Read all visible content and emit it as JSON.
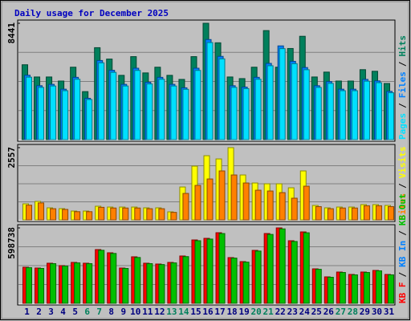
{
  "chart_data": [
    {
      "type": "bar",
      "title": "Daily usage for December 2025",
      "ylim": [
        0,
        8441
      ],
      "yticks": [
        8441
      ],
      "legend_separator": "/",
      "series": [
        {
          "name": "Hits",
          "color": "#00805c",
          "values": [
            5431,
            4545,
            4545,
            4250,
            5254,
            3483,
            6670,
            5844,
            4663,
            6021,
            4840,
            5254,
            4663,
            4368,
            6021,
            8441,
            7024,
            4545,
            4427,
            5254,
            7910,
            5254,
            6611,
            7497,
            4545,
            4899,
            4250,
            4250,
            5076,
            4958,
            4073
          ]
        },
        {
          "name": "Files",
          "color": "#0080ff",
          "values": [
            4670,
            3910,
            4010,
            3660,
            4520,
            3000,
            5740,
            5030,
            4010,
            5180,
            4160,
            4520,
            4010,
            3760,
            5180,
            7260,
            6040,
            3910,
            3810,
            4520,
            5530,
            6800,
            5680,
            5230,
            3910,
            4210,
            3660,
            3660,
            4370,
            4260,
            3500
          ]
        },
        {
          "name": "Pages",
          "color": "#00e0ff",
          "values": [
            4530,
            3790,
            3890,
            3550,
            4380,
            2910,
            5570,
            4880,
            3890,
            5020,
            4040,
            4380,
            3890,
            3650,
            5020,
            7040,
            5860,
            3790,
            3700,
            4380,
            5360,
            6600,
            5510,
            5070,
            3790,
            4080,
            3550,
            3550,
            4240,
            4130,
            3400
          ]
        }
      ]
    },
    {
      "type": "bar",
      "ylim": [
        0,
        2557
      ],
      "yticks": [
        2557
      ],
      "legend_separator": "/",
      "series": [
        {
          "name": "Visits",
          "color": "#ffff00",
          "values": [
            568,
            653,
            426,
            398,
            312,
            312,
            483,
            454,
            454,
            454,
            426,
            426,
            284,
            1164,
            1903,
            2272,
            2158,
            2557,
            1590,
            1306,
            1278,
            1278,
            1136,
            1733,
            511,
            426,
            454,
            454,
            540,
            540,
            511
          ]
        },
        {
          "name": "Sites",
          "color": "#ff8000",
          "values": [
            520,
            600,
            395,
            370,
            290,
            290,
            445,
            420,
            420,
            420,
            395,
            395,
            265,
            937,
            1221,
            1448,
            1733,
            1590,
            1306,
            1050,
            1022,
            965,
            767,
            1193,
            470,
            395,
            420,
            420,
            500,
            500,
            470
          ]
        }
      ]
    },
    {
      "type": "bar",
      "ylim": [
        0,
        598738
      ],
      "yticks": [
        598738
      ],
      "legend_separator": "/",
      "categories": [
        1,
        2,
        3,
        4,
        5,
        6,
        7,
        8,
        9,
        10,
        11,
        12,
        13,
        14,
        15,
        16,
        17,
        18,
        19,
        20,
        21,
        22,
        23,
        24,
        25,
        26,
        27,
        28,
        29,
        30,
        31
      ],
      "category_colors": [
        "#000080",
        "#000080",
        "#000080",
        "#000080",
        "#000080",
        "#00805c",
        "#00805c",
        "#000080",
        "#000080",
        "#000080",
        "#000080",
        "#000080",
        "#00805c",
        "#00805c",
        "#000080",
        "#000080",
        "#000080",
        "#000080",
        "#000080",
        "#00805c",
        "#00805c",
        "#000080",
        "#000080",
        "#000080",
        "#000080",
        "#000080",
        "#00805c",
        "#00805c",
        "#000080",
        "#000080",
        "#000080"
      ],
      "series": [
        {
          "name": "KB F",
          "color": "#ff0000",
          "values": [
            286650,
            280280,
            318500,
            299390,
            324870,
            318500,
            426790,
            401310,
            280280,
            369460,
            318500,
            312130,
            324870,
            375830,
            503230,
            515970,
            560560,
            363090,
            331240,
            420420,
            554190,
            598738,
            496860,
            566930,
            273910,
            210210,
            248430,
            229320,
            248430,
            261170,
            229320
          ]
        },
        {
          "name": "KB In",
          "color": "#0080ff"
        },
        {
          "name": "KB Out",
          "color": "#00c000",
          "values": [
            283000,
            277000,
            315000,
            296000,
            321000,
            315000,
            421000,
            396000,
            277000,
            364000,
            315000,
            308000,
            321000,
            371000,
            497000,
            510000,
            554000,
            359000,
            327000,
            415000,
            547000,
            591000,
            491000,
            560000,
            270000,
            207000,
            245000,
            226000,
            245000,
            258000,
            226000
          ]
        }
      ]
    }
  ]
}
